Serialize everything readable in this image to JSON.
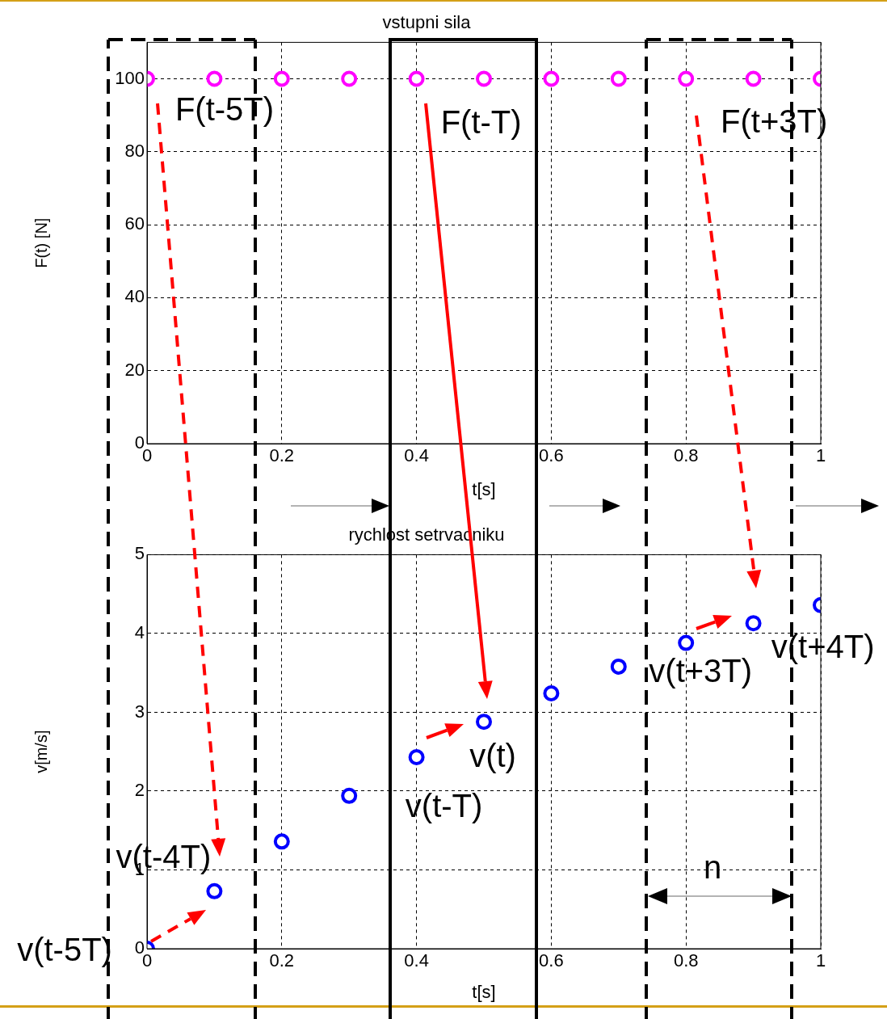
{
  "chart_data": [
    {
      "type": "scatter",
      "title": "vstupni sila",
      "xlabel": "t[s]",
      "ylabel": "F(t) [N]",
      "x": [
        0,
        0.1,
        0.2,
        0.3,
        0.4,
        0.5,
        0.6,
        0.7,
        0.8,
        0.9,
        1
      ],
      "values": [
        100,
        100,
        100,
        100,
        100,
        100,
        100,
        100,
        100,
        100,
        100
      ],
      "color": "#ff00ff",
      "xlim": [
        0,
        1
      ],
      "xticks": [
        0,
        0.2,
        0.4,
        0.6,
        0.8,
        1
      ],
      "ylim": [
        0,
        110
      ],
      "yticks": [
        0,
        20,
        40,
        60,
        80,
        100
      ],
      "grid": true,
      "marker": "circle",
      "annotations": [
        {
          "text": "F(t-5T)",
          "x": 0,
          "y": 100
        },
        {
          "text": "F(t-T)",
          "x": 0.4,
          "y": 100
        },
        {
          "text": "F(t+3T)",
          "x": 0.8,
          "y": 100
        }
      ]
    },
    {
      "type": "scatter",
      "title": "rychlost setrvacniku",
      "xlabel": "t[s]",
      "ylabel": "v[m/s]",
      "x": [
        0,
        0.1,
        0.2,
        0.3,
        0.4,
        0.5,
        0.6,
        0.7,
        0.8,
        0.9,
        1
      ],
      "values": [
        0,
        0.73,
        1.36,
        1.94,
        2.43,
        2.88,
        3.24,
        3.58,
        3.88,
        4.13,
        4.36
      ],
      "color": "#0000ff",
      "xlim": [
        0,
        1
      ],
      "xticks": [
        0,
        0.2,
        0.4,
        0.6,
        0.8,
        1
      ],
      "ylim": [
        0,
        5
      ],
      "yticks": [
        0,
        1,
        2,
        3,
        4,
        5
      ],
      "grid": true,
      "marker": "circle",
      "annotations": [
        {
          "text": "v(t-5T)",
          "x": 0,
          "y": 0
        },
        {
          "text": "v(t-4T)",
          "x": 0.1,
          "y": 0.73
        },
        {
          "text": "v(t-T)",
          "x": 0.4,
          "y": 2.43
        },
        {
          "text": "v(t)",
          "x": 0.5,
          "y": 2.88
        },
        {
          "text": "v(t+3T)",
          "x": 0.8,
          "y": 3.88
        },
        {
          "text": "v(t+4T)",
          "x": 0.9,
          "y": 4.13
        },
        "n"
      ]
    }
  ]
}
